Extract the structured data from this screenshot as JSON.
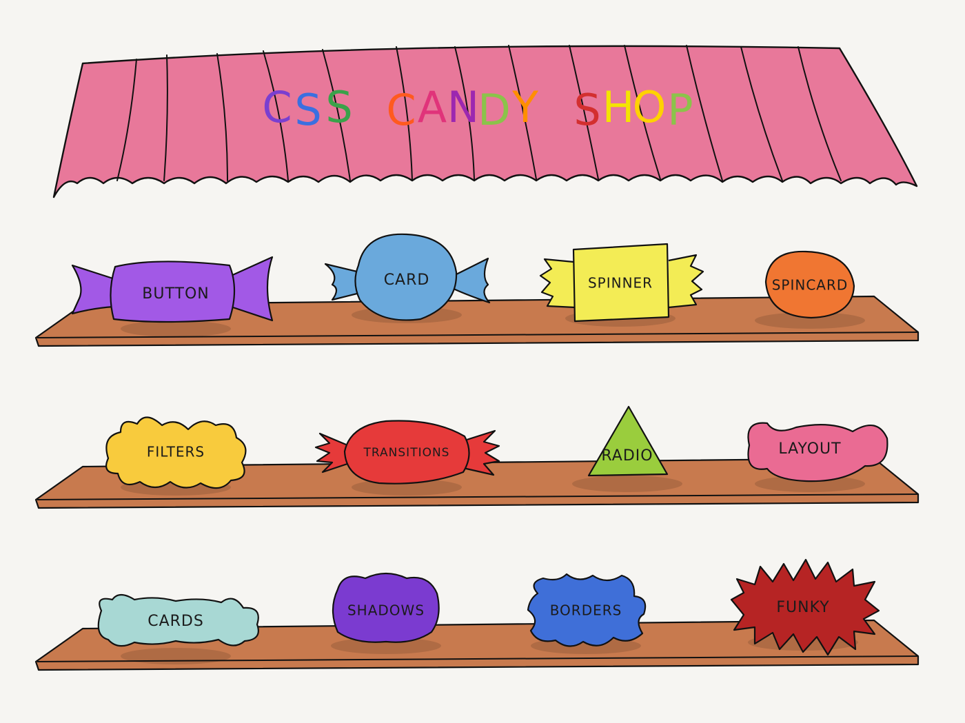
{
  "sign": {
    "title": "CSS CANDY SHOP",
    "letter_colors": [
      "#7a3fd0",
      "#3b6fe0",
      "#3aa24a",
      "#ff5a1f",
      "#e0337a",
      "#9c27b0",
      "#8bc34a",
      "#ff8f00",
      "#d32f2f",
      "#f4e400",
      "#ffd200",
      "#8bc34a",
      "#ff7043",
      "#64b5f6"
    ],
    "awning_color": "#e8789a"
  },
  "shelves": [
    {
      "candies": [
        {
          "label": "BUTTON",
          "icon": "wrapped-candy-icon",
          "color": "#a259e6"
        },
        {
          "label": "CARD",
          "icon": "round-wrapped-candy-icon",
          "color": "#6aa9dc"
        },
        {
          "label": "SPINNER",
          "icon": "square-wrapped-candy-icon",
          "color": "#f3ec55"
        },
        {
          "label": "SPINCARD",
          "icon": "oval-candy-icon",
          "color": "#f07632"
        }
      ]
    },
    {
      "candies": [
        {
          "label": "FILTERS",
          "icon": "cloud-candy-icon",
          "color": "#f8cb3d"
        },
        {
          "label": "TRANSITIONS",
          "icon": "frilled-candy-icon",
          "color": "#e63a3a"
        },
        {
          "label": "RADIO",
          "icon": "triangle-candy-icon",
          "color": "#9acd3d"
        },
        {
          "label": "LAYOUT",
          "icon": "bean-candy-icon",
          "color": "#ea6b93"
        }
      ]
    },
    {
      "candies": [
        {
          "label": "CARDS",
          "icon": "fluffy-candy-icon",
          "color": "#a8d8d4"
        },
        {
          "label": "SHADOWS",
          "icon": "blob-candy-icon",
          "color": "#7b3bd0"
        },
        {
          "label": "BORDERS",
          "icon": "splat-candy-icon",
          "color": "#3f6fd8"
        },
        {
          "label": "FUNKY",
          "icon": "spiky-candy-icon",
          "color": "#b62424"
        }
      ]
    }
  ],
  "shelf_color": "#c87a4e"
}
